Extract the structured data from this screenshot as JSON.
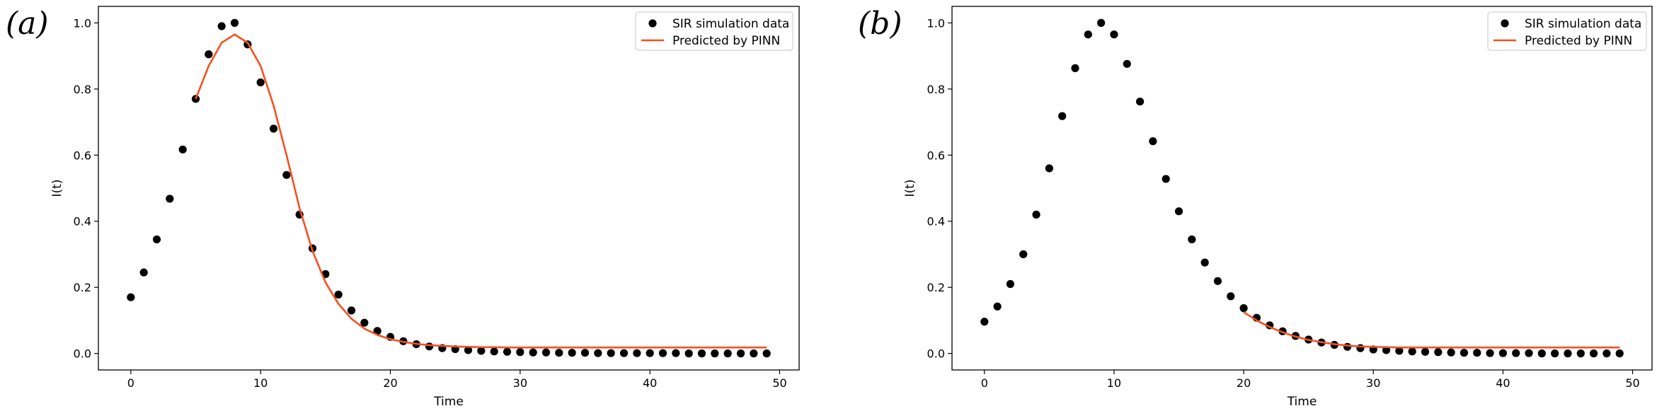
{
  "chart_data": [
    {
      "type": "scatter+line",
      "panel_label": "(a)",
      "xlabel": "Time",
      "ylabel": "I(t)",
      "xlim": [
        -2.5,
        51.5
      ],
      "ylim": [
        -0.05,
        1.05
      ],
      "xticks": [
        0,
        10,
        20,
        30,
        40,
        50
      ],
      "xtick_labels": [
        "0",
        "10",
        "20",
        "30",
        "40",
        "50"
      ],
      "yticks": [
        0.0,
        0.2,
        0.4,
        0.6,
        0.8,
        1.0
      ],
      "ytick_labels": [
        "0.0",
        "0.2",
        "0.4",
        "0.6",
        "0.8",
        "1.0"
      ],
      "legend_position": "upper right",
      "series": [
        {
          "name": "SIR simulation data",
          "kind": "scatter",
          "color": "#000000",
          "x": [
            0,
            1,
            2,
            3,
            4,
            5,
            6,
            7,
            8,
            9,
            10,
            11,
            12,
            13,
            14,
            15,
            16,
            17,
            18,
            19,
            20,
            21,
            22,
            23,
            24,
            25,
            26,
            27,
            28,
            29,
            30,
            31,
            32,
            33,
            34,
            35,
            36,
            37,
            38,
            39,
            40,
            41,
            42,
            43,
            44,
            45,
            46,
            47,
            48,
            49
          ],
          "y": [
            0.17,
            0.245,
            0.345,
            0.468,
            0.617,
            0.77,
            0.905,
            0.99,
            1.0,
            0.935,
            0.82,
            0.68,
            0.54,
            0.42,
            0.318,
            0.24,
            0.178,
            0.13,
            0.093,
            0.068,
            0.05,
            0.037,
            0.028,
            0.021,
            0.016,
            0.013,
            0.01,
            0.008,
            0.006,
            0.005,
            0.004,
            0.003,
            0.003,
            0.002,
            0.002,
            0.002,
            0.001,
            0.001,
            0.001,
            0.001,
            0.001,
            0.001,
            0.001,
            0.0,
            0.0,
            0.0,
            0.0,
            0.0,
            0.0,
            0.0
          ]
        },
        {
          "name": "Predicted by PINN",
          "kind": "line",
          "color": "#f4511e",
          "x": [
            5,
            6,
            7,
            8,
            9,
            10,
            11,
            12,
            13,
            14,
            15,
            16,
            17,
            18,
            19,
            20,
            21,
            22,
            23,
            24,
            25,
            26,
            27,
            28,
            29,
            30,
            31,
            32,
            33,
            34,
            35,
            36,
            37,
            38,
            39,
            40,
            41,
            42,
            43,
            44,
            45,
            46,
            47,
            48,
            49
          ],
          "y": [
            0.77,
            0.87,
            0.94,
            0.965,
            0.94,
            0.87,
            0.75,
            0.6,
            0.44,
            0.31,
            0.215,
            0.15,
            0.105,
            0.075,
            0.056,
            0.043,
            0.035,
            0.029,
            0.025,
            0.023,
            0.021,
            0.02,
            0.019,
            0.019,
            0.018,
            0.018,
            0.018,
            0.018,
            0.018,
            0.018,
            0.018,
            0.018,
            0.018,
            0.018,
            0.018,
            0.018,
            0.018,
            0.018,
            0.018,
            0.018,
            0.018,
            0.018,
            0.018,
            0.018,
            0.018
          ]
        }
      ]
    },
    {
      "type": "scatter+line",
      "panel_label": "(b)",
      "xlabel": "Time",
      "ylabel": "I(t)",
      "xlim": [
        -2.5,
        51.5
      ],
      "ylim": [
        -0.05,
        1.05
      ],
      "xticks": [
        0,
        10,
        20,
        30,
        40,
        50
      ],
      "xtick_labels": [
        "0",
        "10",
        "20",
        "30",
        "40",
        "50"
      ],
      "yticks": [
        0.0,
        0.2,
        0.4,
        0.6,
        0.8,
        1.0
      ],
      "ytick_labels": [
        "0.0",
        "0.2",
        "0.4",
        "0.6",
        "0.8",
        "1.0"
      ],
      "legend_position": "upper right",
      "series": [
        {
          "name": "SIR simulation data",
          "kind": "scatter",
          "color": "#000000",
          "x": [
            0,
            1,
            2,
            3,
            4,
            5,
            6,
            7,
            8,
            9,
            10,
            11,
            12,
            13,
            14,
            15,
            16,
            17,
            18,
            19,
            20,
            21,
            22,
            23,
            24,
            25,
            26,
            27,
            28,
            29,
            30,
            31,
            32,
            33,
            34,
            35,
            36,
            37,
            38,
            39,
            40,
            41,
            42,
            43,
            44,
            45,
            46,
            47,
            48,
            49
          ],
          "y": [
            0.096,
            0.142,
            0.21,
            0.3,
            0.42,
            0.56,
            0.718,
            0.863,
            0.965,
            1.0,
            0.965,
            0.876,
            0.762,
            0.642,
            0.528,
            0.43,
            0.345,
            0.275,
            0.219,
            0.173,
            0.137,
            0.108,
            0.085,
            0.067,
            0.053,
            0.042,
            0.033,
            0.026,
            0.02,
            0.016,
            0.012,
            0.01,
            0.008,
            0.006,
            0.005,
            0.004,
            0.003,
            0.002,
            0.002,
            0.001,
            0.001,
            0.001,
            0.001,
            0.0,
            0.0,
            0.0,
            0.0,
            0.0,
            0.0,
            0.0
          ]
        },
        {
          "name": "Predicted by PINN",
          "kind": "line",
          "color": "#f4511e",
          "x": [
            20,
            21,
            22,
            23,
            24,
            25,
            26,
            27,
            28,
            29,
            30,
            31,
            32,
            33,
            34,
            35,
            36,
            37,
            38,
            39,
            40,
            41,
            42,
            43,
            44,
            45,
            46,
            47,
            48,
            49
          ],
          "y": [
            0.125,
            0.1,
            0.08,
            0.064,
            0.051,
            0.041,
            0.034,
            0.028,
            0.024,
            0.021,
            0.02,
            0.019,
            0.018,
            0.018,
            0.018,
            0.018,
            0.018,
            0.018,
            0.018,
            0.018,
            0.018,
            0.018,
            0.018,
            0.018,
            0.018,
            0.018,
            0.018,
            0.018,
            0.018,
            0.018
          ]
        }
      ]
    }
  ]
}
